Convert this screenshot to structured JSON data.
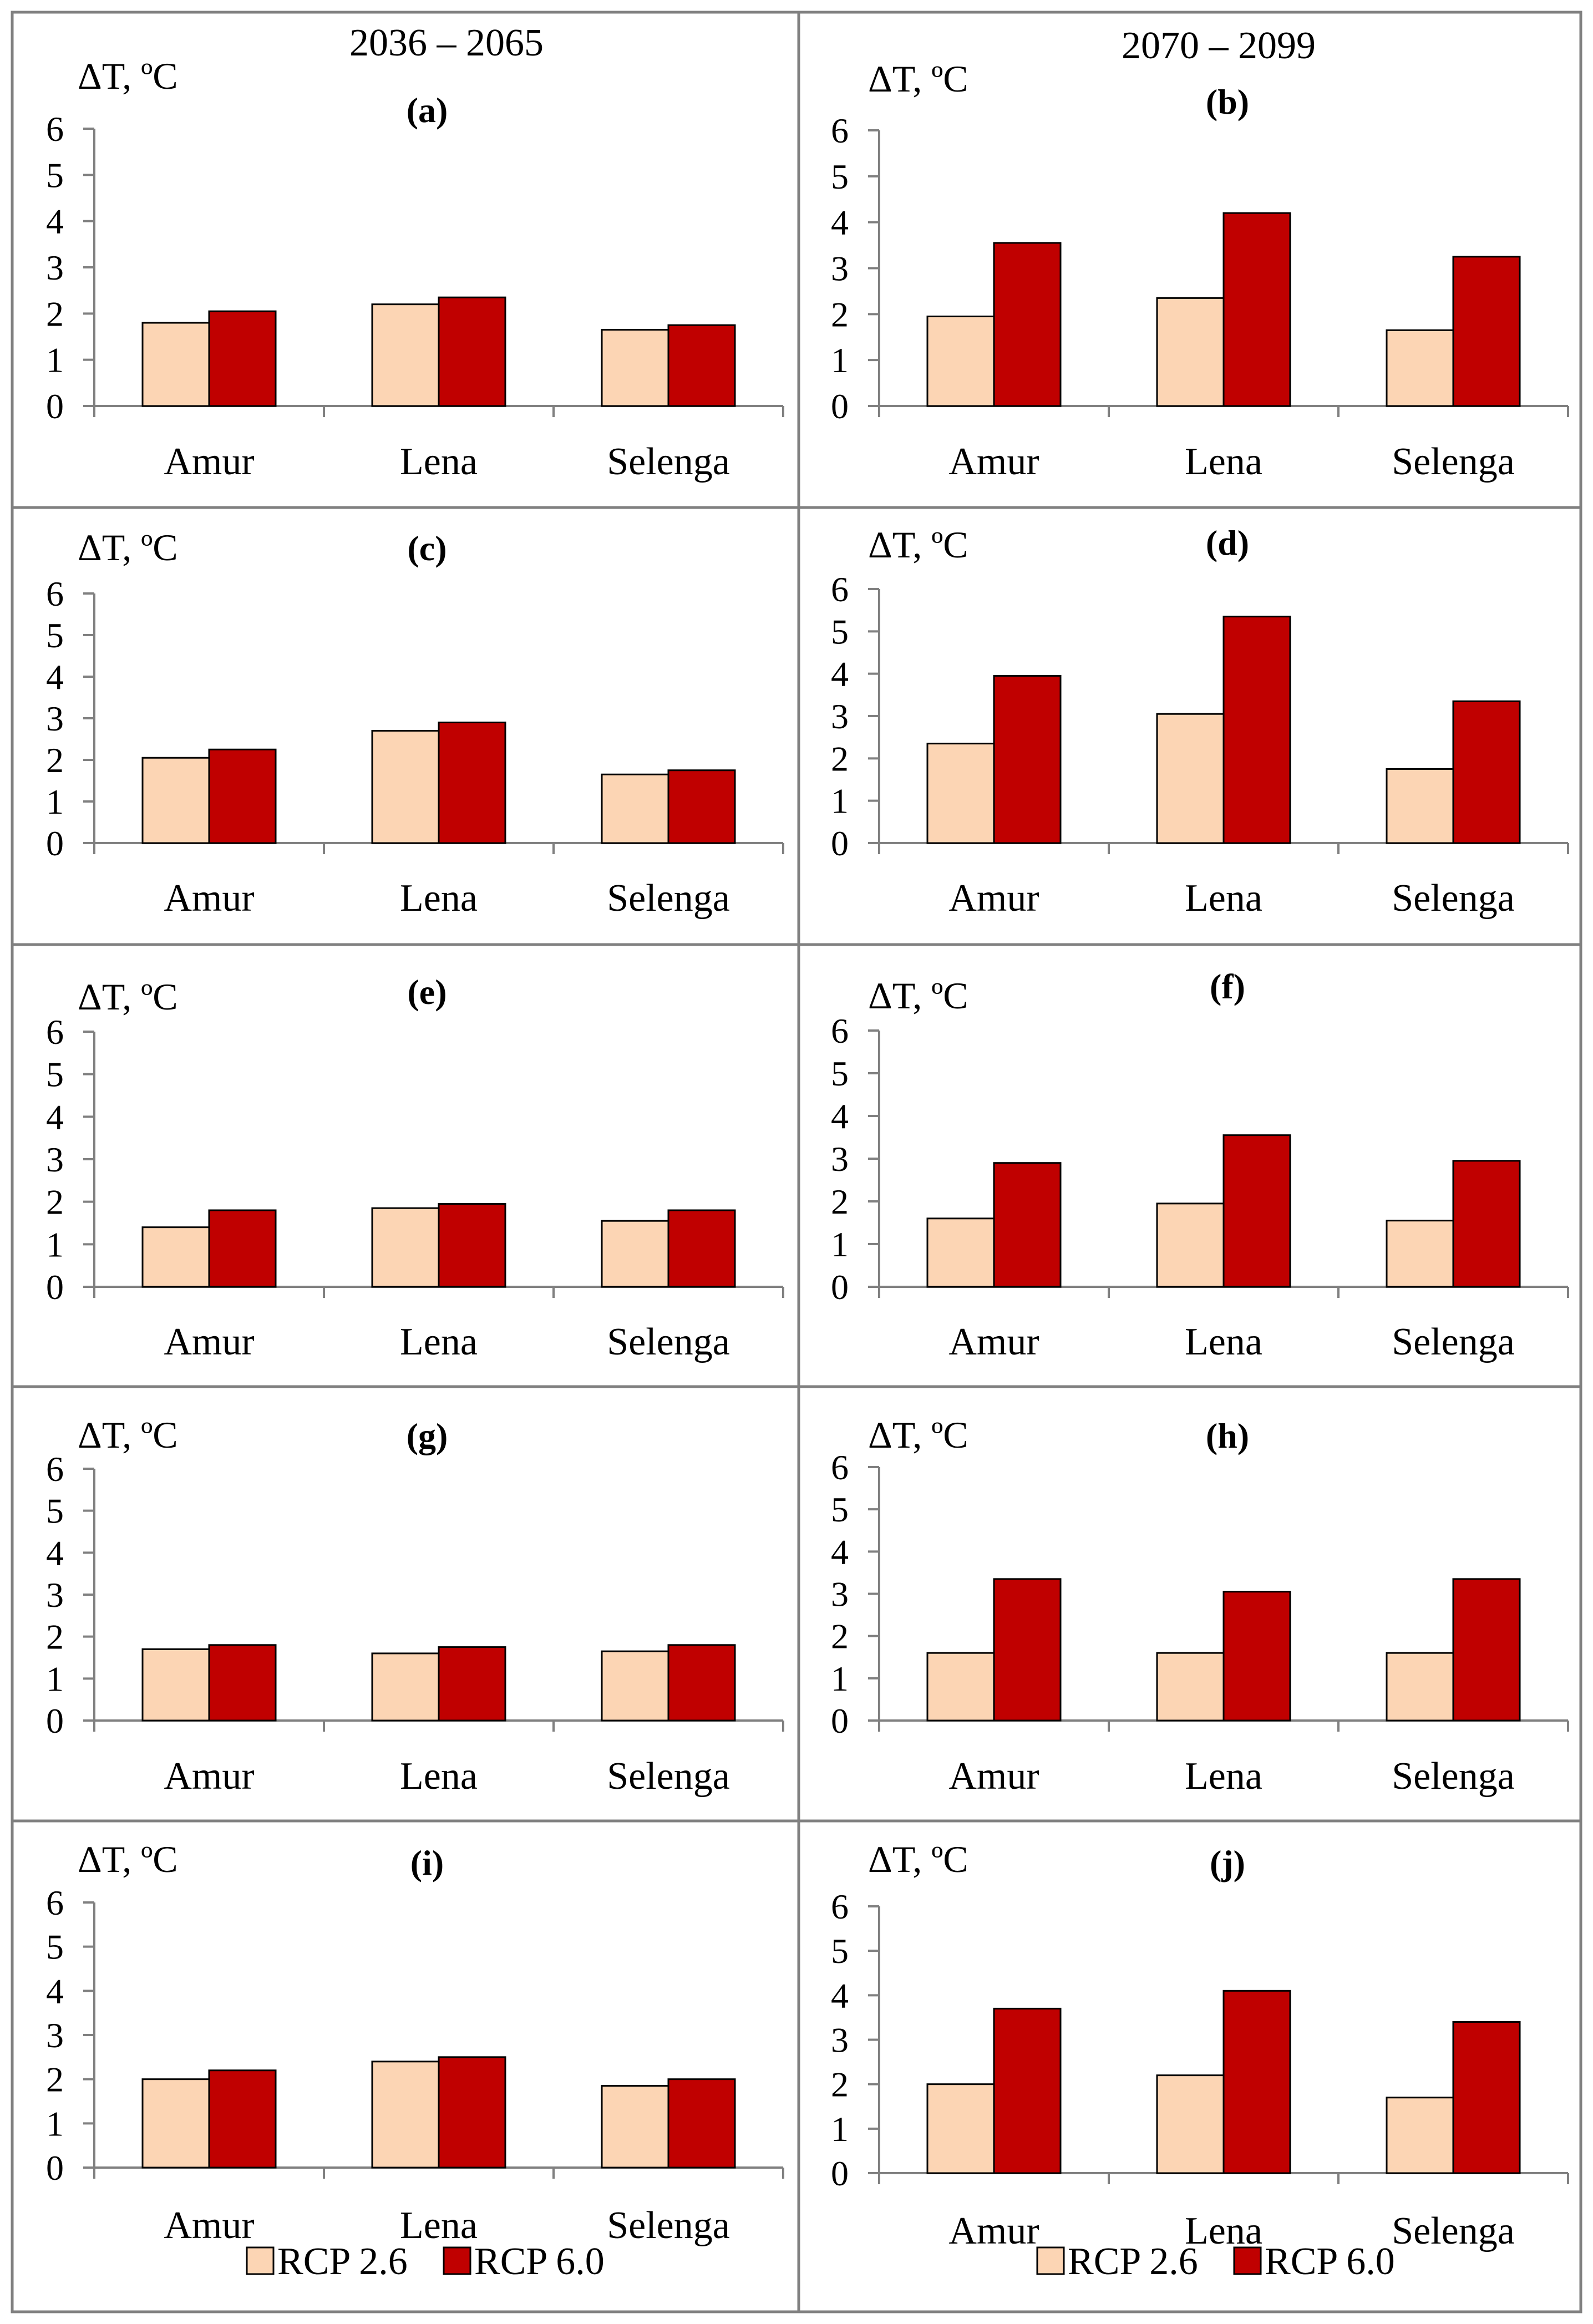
{
  "columns": [
    {
      "title": "2036 – 2065"
    },
    {
      "title": "2070 – 2099"
    }
  ],
  "legend": [
    {
      "label": "RCP 2.6",
      "color": "#fcd5b4"
    },
    {
      "label": "RCP 6.0",
      "color": "#c00000"
    }
  ],
  "chart_data": [
    {
      "type": "bar",
      "label": "(a)",
      "ylabel": "ΔT, ºC",
      "ylim": [
        0,
        6
      ],
      "yticks": [
        "0",
        "1",
        "2",
        "3",
        "4",
        "5",
        "6"
      ],
      "categories": [
        "Amur",
        "Lena",
        "Selenga"
      ],
      "series": [
        {
          "name": "RCP 2.6",
          "values": [
            1.8,
            2.2,
            1.65
          ]
        },
        {
          "name": "RCP 6.0",
          "values": [
            2.05,
            2.35,
            1.75
          ]
        }
      ]
    },
    {
      "type": "bar",
      "label": "(b)",
      "ylabel": "ΔT, ºC",
      "ylim": [
        0,
        6
      ],
      "yticks": [
        "0",
        "1",
        "2",
        "3",
        "4",
        "5",
        "6"
      ],
      "categories": [
        "Amur",
        "Lena",
        "Selenga"
      ],
      "series": [
        {
          "name": "RCP 2.6",
          "values": [
            1.95,
            2.35,
            1.65
          ]
        },
        {
          "name": "RCP 6.0",
          "values": [
            3.55,
            4.2,
            3.25
          ]
        }
      ]
    },
    {
      "type": "bar",
      "label": "(c)",
      "ylabel": "ΔT, ºC",
      "ylim": [
        0,
        6
      ],
      "yticks": [
        "0",
        "1",
        "2",
        "3",
        "4",
        "5",
        "6"
      ],
      "categories": [
        "Amur",
        "Lena",
        "Selenga"
      ],
      "series": [
        {
          "name": "RCP 2.6",
          "values": [
            2.05,
            2.7,
            1.65
          ]
        },
        {
          "name": "RCP 6.0",
          "values": [
            2.25,
            2.9,
            1.75
          ]
        }
      ]
    },
    {
      "type": "bar",
      "label": "(d)",
      "ylabel": "ΔT, ºC",
      "ylim": [
        0,
        6
      ],
      "yticks": [
        "0",
        "1",
        "2",
        "3",
        "4",
        "5",
        "6"
      ],
      "categories": [
        "Amur",
        "Lena",
        "Selenga"
      ],
      "series": [
        {
          "name": "RCP 2.6",
          "values": [
            2.35,
            3.05,
            1.75
          ]
        },
        {
          "name": "RCP 6.0",
          "values": [
            3.95,
            5.35,
            3.35
          ]
        }
      ]
    },
    {
      "type": "bar",
      "label": "(e)",
      "ylabel": "ΔT, ºC",
      "ylim": [
        0,
        6
      ],
      "yticks": [
        "0",
        "1",
        "2",
        "3",
        "4",
        "5",
        "6"
      ],
      "categories": [
        "Amur",
        "Lena",
        "Selenga"
      ],
      "series": [
        {
          "name": "RCP 2.6",
          "values": [
            1.4,
            1.85,
            1.55
          ]
        },
        {
          "name": "RCP 6.0",
          "values": [
            1.8,
            1.95,
            1.8
          ]
        }
      ]
    },
    {
      "type": "bar",
      "label": "(f)",
      "ylabel": "ΔT, ºC",
      "ylim": [
        0,
        6
      ],
      "yticks": [
        "0",
        "1",
        "2",
        "3",
        "4",
        "5",
        "6"
      ],
      "categories": [
        "Amur",
        "Lena",
        "Selenga"
      ],
      "series": [
        {
          "name": "RCP 2.6",
          "values": [
            1.6,
            1.95,
            1.55
          ]
        },
        {
          "name": "RCP 6.0",
          "values": [
            2.9,
            3.55,
            2.95
          ]
        }
      ]
    },
    {
      "type": "bar",
      "label": "(g)",
      "ylabel": "ΔT, ºC",
      "ylim": [
        0,
        6
      ],
      "yticks": [
        "0",
        "1",
        "2",
        "3",
        "4",
        "5",
        "6"
      ],
      "categories": [
        "Amur",
        "Lena",
        "Selenga"
      ],
      "series": [
        {
          "name": "RCP 2.6",
          "values": [
            1.7,
            1.6,
            1.65
          ]
        },
        {
          "name": "RCP 6.0",
          "values": [
            1.8,
            1.75,
            1.8
          ]
        }
      ]
    },
    {
      "type": "bar",
      "label": "(h)",
      "ylabel": "ΔT, ºC",
      "ylim": [
        0,
        6
      ],
      "yticks": [
        "0",
        "1",
        "2",
        "3",
        "4",
        "5",
        "6"
      ],
      "categories": [
        "Amur",
        "Lena",
        "Selenga"
      ],
      "series": [
        {
          "name": "RCP 2.6",
          "values": [
            1.6,
            1.6,
            1.6
          ]
        },
        {
          "name": "RCP 6.0",
          "values": [
            3.35,
            3.05,
            3.35
          ]
        }
      ]
    },
    {
      "type": "bar",
      "label": "(i)",
      "ylabel": "ΔT, ºC",
      "ylim": [
        0,
        6
      ],
      "yticks": [
        "0",
        "1",
        "2",
        "3",
        "4",
        "5",
        "6"
      ],
      "categories": [
        "Amur",
        "Lena",
        "Selenga"
      ],
      "series": [
        {
          "name": "RCP 2.6",
          "values": [
            2.0,
            2.4,
            1.85
          ]
        },
        {
          "name": "RCP 6.0",
          "values": [
            2.2,
            2.5,
            2.0
          ]
        }
      ]
    },
    {
      "type": "bar",
      "label": "(j)",
      "ylabel": "ΔT, ºC",
      "ylim": [
        0,
        6
      ],
      "yticks": [
        "0",
        "1",
        "2",
        "3",
        "4",
        "5",
        "6"
      ],
      "categories": [
        "Amur",
        "Lena",
        "Selenga"
      ],
      "series": [
        {
          "name": "RCP 2.6",
          "values": [
            2.0,
            2.2,
            1.7
          ]
        },
        {
          "name": "RCP 6.0",
          "values": [
            3.7,
            4.1,
            3.4
          ]
        }
      ]
    }
  ]
}
